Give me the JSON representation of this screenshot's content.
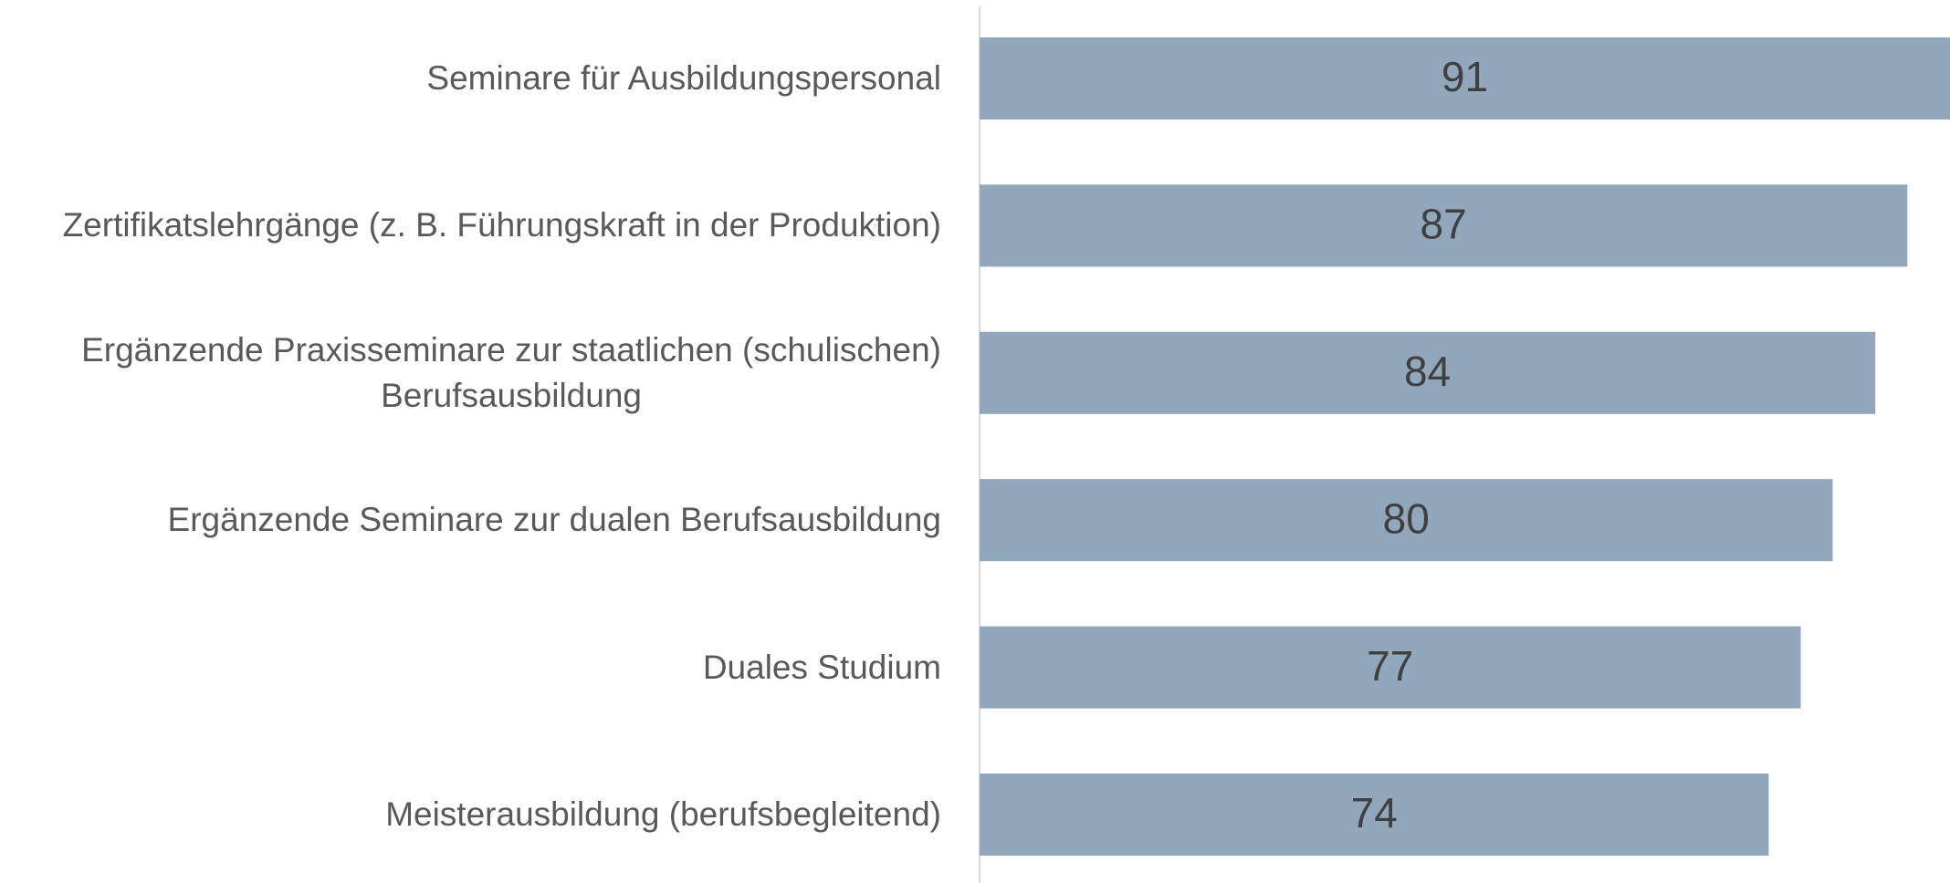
{
  "chart_data": {
    "type": "bar",
    "orientation": "horizontal",
    "categories": [
      "Seminare für Ausbildungspersonal",
      "Zertifikatslehrgänge (z. B. Führungskraft in der Produktion)",
      "Ergänzende Praxisseminare zur staatlichen (schulischen)\nBerufsausbildung",
      "Ergänzende Seminare zur dualen Berufsausbildung",
      "Duales Studium",
      "Meisterausbildung (berufsbegleitend)"
    ],
    "values": [
      91,
      87,
      84,
      80,
      77,
      74
    ],
    "color": "#91a7bc"
  }
}
